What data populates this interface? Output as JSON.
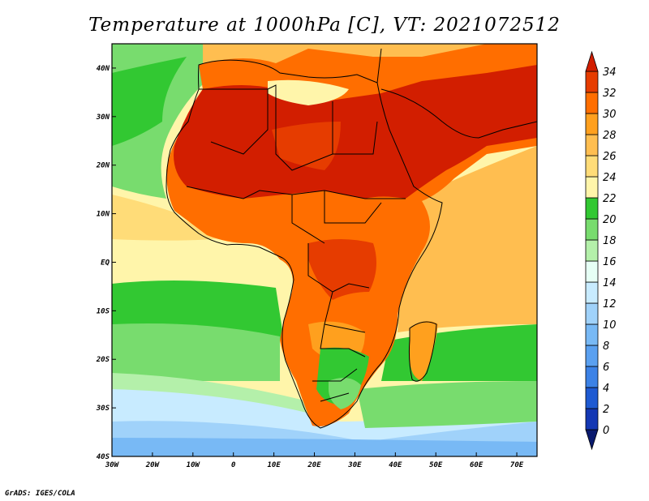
{
  "title": "Temperature at 1000hPa [C], VT: 2021072512",
  "credit": "GrADS: IGES/COLA",
  "map": {
    "lon_range": [
      -30,
      75
    ],
    "lat_range": [
      -40,
      45
    ],
    "lon_ticks": [
      {
        "value": -30,
        "label": "30W"
      },
      {
        "value": -20,
        "label": "20W"
      },
      {
        "value": -10,
        "label": "10W"
      },
      {
        "value": 0,
        "label": "0"
      },
      {
        "value": 10,
        "label": "10E"
      },
      {
        "value": 20,
        "label": "20E"
      },
      {
        "value": 30,
        "label": "30E"
      },
      {
        "value": 40,
        "label": "40E"
      },
      {
        "value": 50,
        "label": "50E"
      },
      {
        "value": 60,
        "label": "60E"
      },
      {
        "value": 70,
        "label": "70E"
      }
    ],
    "lat_ticks": [
      {
        "value": 40,
        "label": "40N"
      },
      {
        "value": 30,
        "label": "30N"
      },
      {
        "value": 20,
        "label": "20N"
      },
      {
        "value": 10,
        "label": "10N"
      },
      {
        "value": 0,
        "label": "EQ"
      },
      {
        "value": -10,
        "label": "10S"
      },
      {
        "value": -20,
        "label": "20S"
      },
      {
        "value": -30,
        "label": "30S"
      },
      {
        "value": -40,
        "label": "40S"
      }
    ]
  },
  "colorbar": {
    "levels": [
      "0",
      "2",
      "4",
      "6",
      "8",
      "10",
      "12",
      "14",
      "16",
      "18",
      "20",
      "22",
      "24",
      "26",
      "28",
      "30",
      "32",
      "34"
    ],
    "colors": [
      "#0a1a6e",
      "#1438b4",
      "#1e5ad2",
      "#3c82e6",
      "#5aa0f0",
      "#78b9f5",
      "#a0d2fa",
      "#c8ebff",
      "#e6fff5",
      "#b4f0aa",
      "#78dc6e",
      "#32c832",
      "#fff5aa",
      "#ffdc78",
      "#ffbe50",
      "#ffa01e",
      "#ff6e00",
      "#e63c00",
      "#d21e00"
    ]
  }
}
